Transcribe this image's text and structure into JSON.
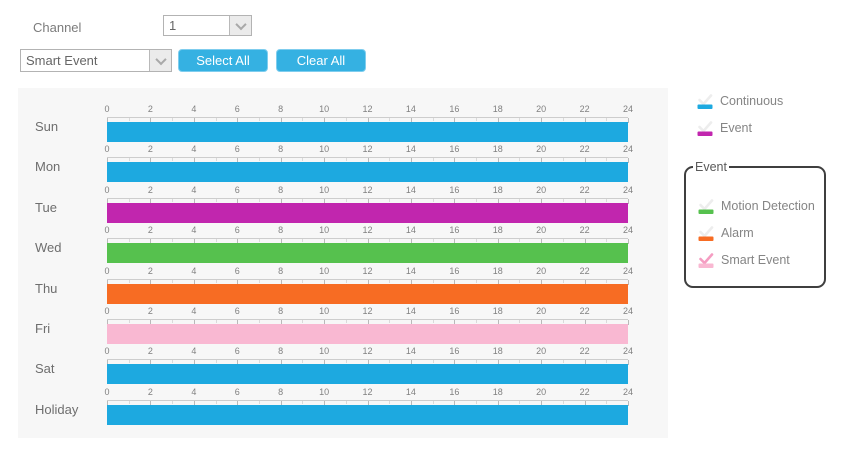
{
  "controls": {
    "channel_label": "Channel",
    "channel_value": "1",
    "event_type_value": "Smart Event",
    "select_all_label": "Select All",
    "clear_all_label": "Clear All"
  },
  "colors": {
    "continuous": "#1da9e0",
    "event": "#c126ae",
    "motion": "#56c14e",
    "alarm": "#f76c23",
    "smart": "#f9b8d2",
    "button_blue": "#35b1e2",
    "unselected_check": "#ededed",
    "selected_check": "#f59dc2"
  },
  "schedule": {
    "hour_labels": [
      "0",
      "2",
      "4",
      "6",
      "8",
      "10",
      "12",
      "14",
      "16",
      "18",
      "20",
      "22",
      "24"
    ],
    "hours_start": 0,
    "hours_end": 24,
    "rows": [
      {
        "day": "Sun",
        "type": "continuous",
        "start": 0,
        "end": 24
      },
      {
        "day": "Mon",
        "type": "continuous",
        "start": 0,
        "end": 24
      },
      {
        "day": "Tue",
        "type": "event",
        "start": 0,
        "end": 24
      },
      {
        "day": "Wed",
        "type": "motion",
        "start": 0,
        "end": 24
      },
      {
        "day": "Thu",
        "type": "alarm",
        "start": 0,
        "end": 24
      },
      {
        "day": "Fri",
        "type": "smart",
        "start": 0,
        "end": 24
      },
      {
        "day": "Sat",
        "type": "continuous",
        "start": 0,
        "end": 24
      },
      {
        "day": "Holiday",
        "type": "continuous",
        "start": 0,
        "end": 24
      }
    ]
  },
  "legend": {
    "items": [
      {
        "label": "Continuous",
        "type": "continuous",
        "selected": false
      },
      {
        "label": "Event",
        "type": "event",
        "selected": false
      }
    ],
    "event_group": {
      "title": "Event",
      "items": [
        {
          "label": "Motion Detection",
          "type": "motion",
          "selected": false
        },
        {
          "label": "Alarm",
          "type": "alarm",
          "selected": false
        },
        {
          "label": "Smart Event",
          "type": "smart",
          "selected": true
        }
      ]
    }
  }
}
